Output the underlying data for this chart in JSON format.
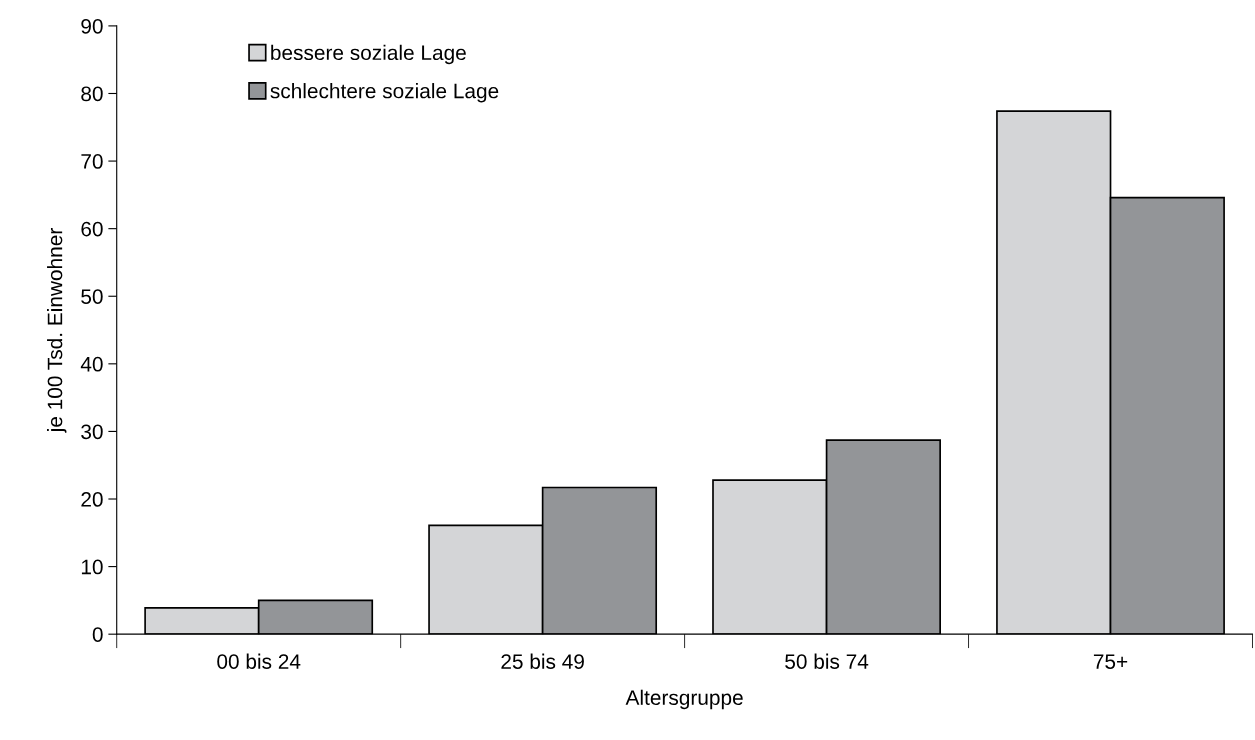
{
  "chart_data": {
    "type": "bar",
    "xlabel": "Altersgruppe",
    "ylabel": "je 100 Tsd. Einwohner",
    "categories": [
      "00 bis 24",
      "25 bis 49",
      "50 bis 74",
      "75+"
    ],
    "series": [
      {
        "name": "bessere soziale Lage",
        "color": "#d4d5d7",
        "values": [
          3.9,
          16.1,
          22.8,
          77.4
        ]
      },
      {
        "name": "schlechtere soziale Lage",
        "color": "#939598",
        "values": [
          5.0,
          21.7,
          28.7,
          64.6
        ]
      }
    ],
    "ylim": [
      0,
      90
    ],
    "yticks": [
      0,
      10,
      20,
      30,
      40,
      50,
      60,
      70,
      80,
      90
    ],
    "grid": false,
    "legend": "top left"
  }
}
